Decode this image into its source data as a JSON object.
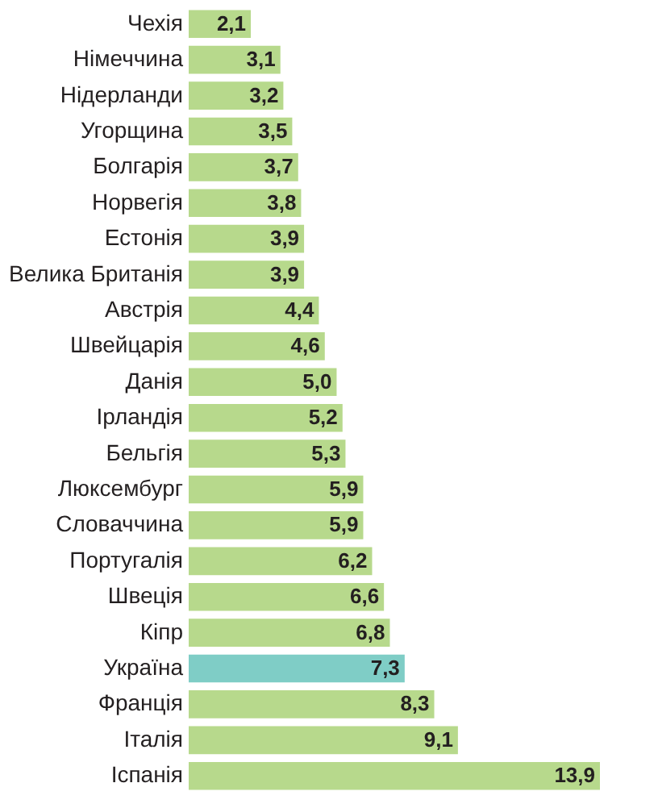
{
  "chart_data": {
    "type": "bar",
    "orientation": "horizontal",
    "categories": [
      "Чехія",
      "Німеччина",
      "Нідерланди",
      "Угорщина",
      "Болгарія",
      "Норвегія",
      "Естонія",
      "Велика Британія",
      "Австрія",
      "Швейцарія",
      "Данія",
      "Ірландія",
      "Бельгія",
      "Люксембург",
      "Словаччина",
      "Португалія",
      "Швеція",
      "Кіпр",
      "Україна",
      "Франція",
      "Італія",
      "Іспанія"
    ],
    "values": [
      2.1,
      3.1,
      3.2,
      3.5,
      3.7,
      3.8,
      3.9,
      3.9,
      4.4,
      4.6,
      5.0,
      5.2,
      5.3,
      5.9,
      5.9,
      6.2,
      6.6,
      6.8,
      7.3,
      8.3,
      9.1,
      13.9
    ],
    "value_labels": [
      "2,1",
      "3,1",
      "3,2",
      "3,5",
      "3,7",
      "3,8",
      "3,9",
      "3,9",
      "4,4",
      "4,6",
      "5,0",
      "5,2",
      "5,3",
      "5,9",
      "5,9",
      "6,2",
      "6,6",
      "6,8",
      "7,3",
      "8,3",
      "9,1",
      "13,9"
    ],
    "colors": [
      "#b7d98c",
      "#b7d98c",
      "#b7d98c",
      "#b7d98c",
      "#b7d98c",
      "#b7d98c",
      "#b7d98c",
      "#b7d98c",
      "#b7d98c",
      "#b7d98c",
      "#b7d98c",
      "#b7d98c",
      "#b7d98c",
      "#b7d98c",
      "#b7d98c",
      "#b7d98c",
      "#b7d98c",
      "#b7d98c",
      "#7fcdc6",
      "#b7d98c",
      "#b7d98c",
      "#b7d98c"
    ]
  }
}
